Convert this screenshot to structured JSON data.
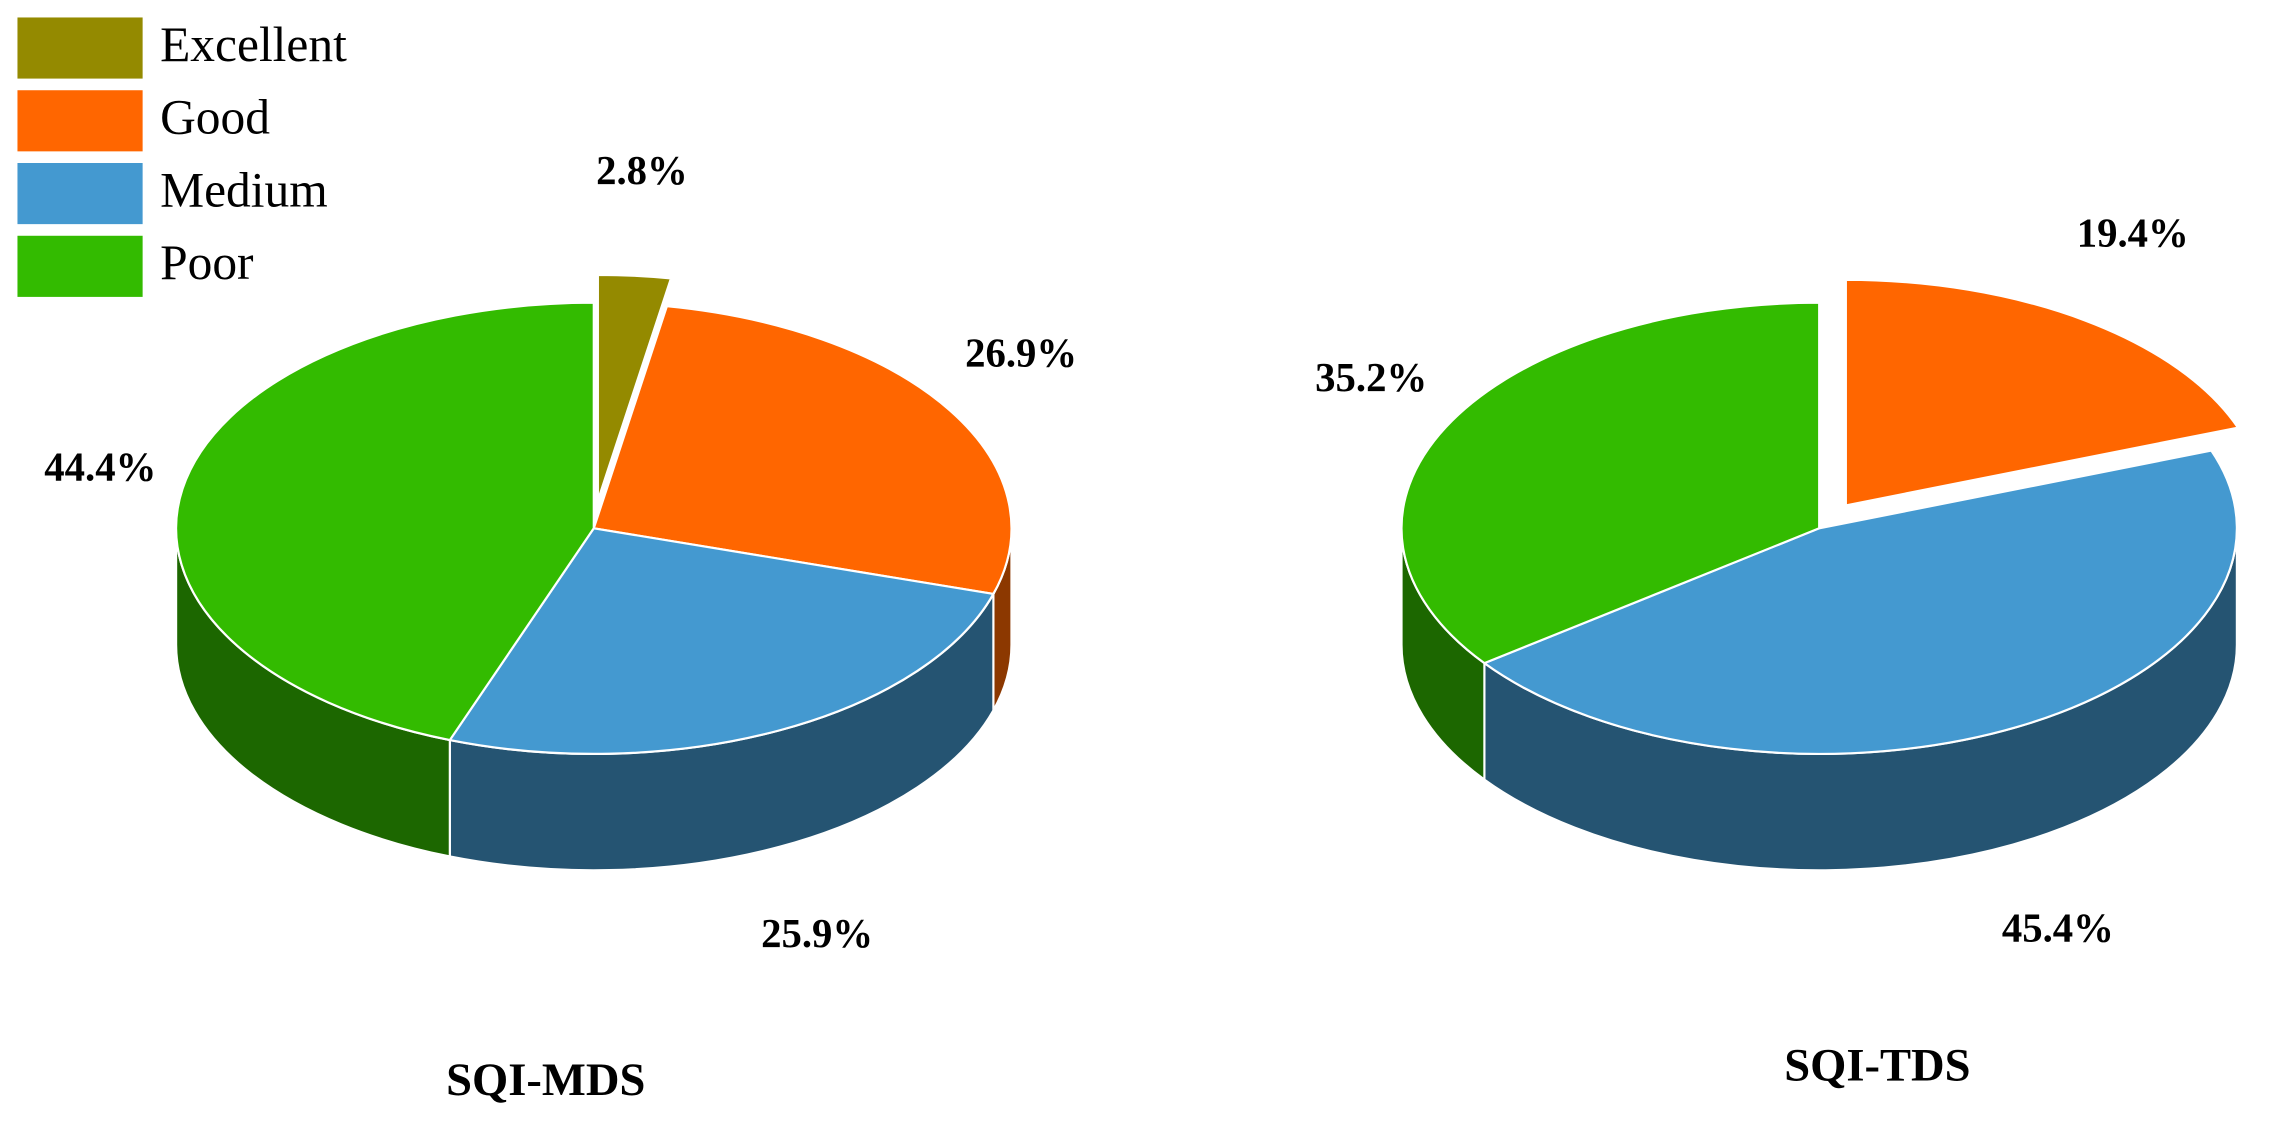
{
  "chart_data": [
    {
      "type": "pie",
      "title": "SQI-MDS",
      "categories": [
        "Excellent",
        "Good",
        "Medium",
        "Poor"
      ],
      "values": [
        2.8,
        26.9,
        25.9,
        44.4
      ],
      "value_labels": [
        "2.8%",
        "26.9%",
        "25.9%",
        "44.4%"
      ],
      "colors": [
        "#948a00",
        "#ff6600",
        "#4499d0",
        "#33bb00"
      ],
      "exploded": [
        true,
        false,
        false,
        false
      ],
      "legend": "upper left"
    },
    {
      "type": "pie",
      "title": "SQI-TDS",
      "categories": [
        "Good",
        "Medium",
        "Poor"
      ],
      "values": [
        19.4,
        45.4,
        35.2
      ],
      "value_labels": [
        "19.4%",
        "45.4%",
        "35.2%"
      ],
      "colors": [
        "#ff6600",
        "#4499d0",
        "#33bb00"
      ],
      "exploded": [
        true,
        false,
        false
      ]
    }
  ]
}
